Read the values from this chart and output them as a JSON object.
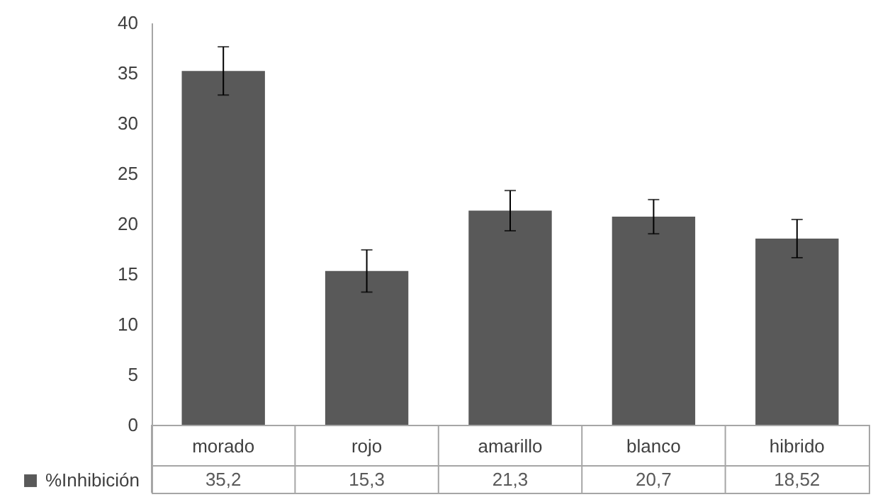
{
  "chart_data": {
    "type": "bar",
    "categories": [
      "morado",
      "rojo",
      "amarillo",
      "blanco",
      "hibrido"
    ],
    "series": [
      {
        "name": "%Inhibición",
        "color": "#595959",
        "values": [
          35.2,
          15.3,
          21.3,
          20.7,
          18.52
        ],
        "errors": [
          2.4,
          2.1,
          2.0,
          1.7,
          1.9
        ],
        "value_labels": [
          "35,2",
          "15,3",
          "21,3",
          "20,7",
          "18,52"
        ]
      }
    ],
    "ylim": [
      0,
      40
    ],
    "yticks": [
      0,
      5,
      10,
      15,
      20,
      25,
      30,
      35,
      40
    ],
    "grid": false,
    "legend": "bottom left"
  }
}
